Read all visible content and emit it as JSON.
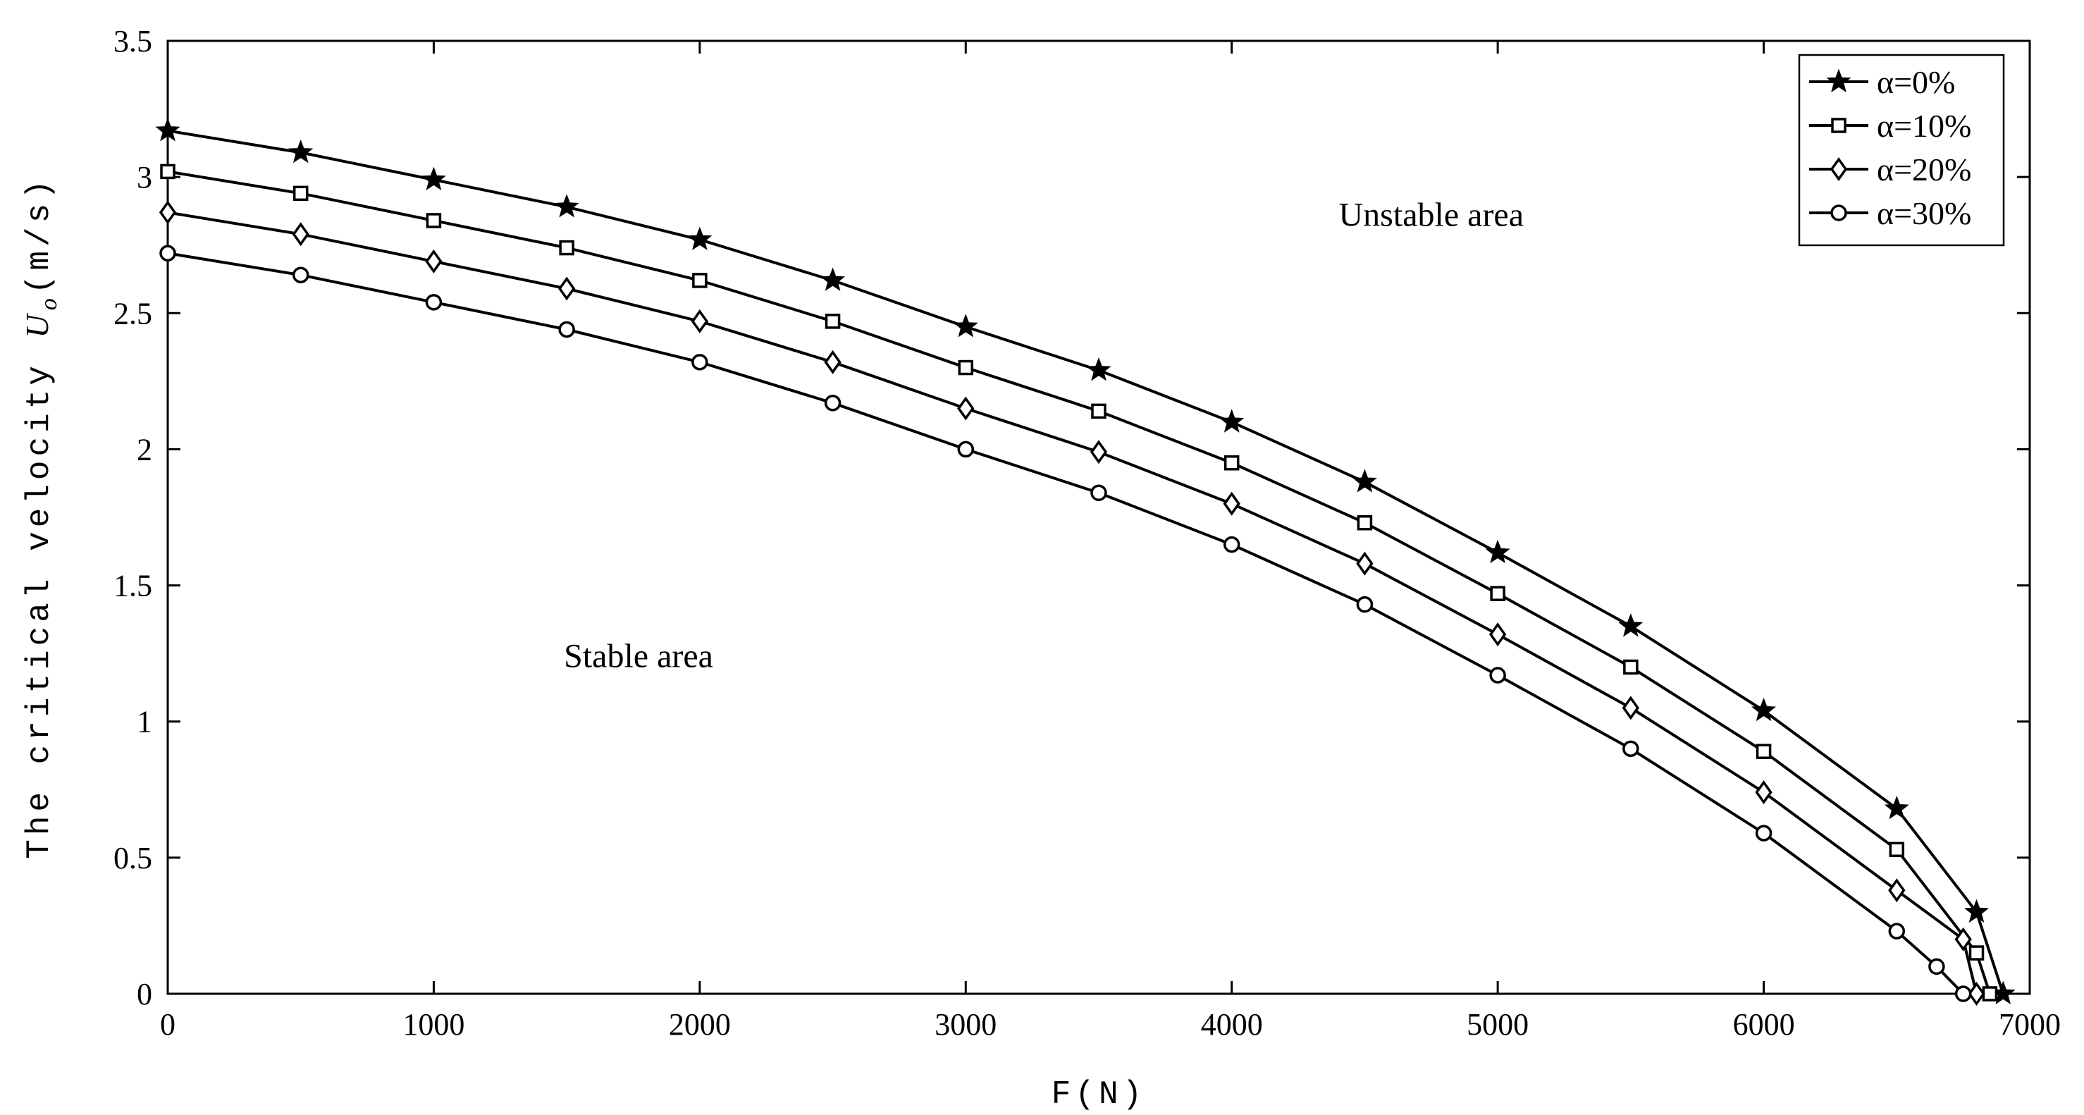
{
  "chart_data": {
    "type": "line",
    "xlabel": "F(N)",
    "ylabel_prefix": "The critical velocity ",
    "ylabel_symbol": "U",
    "ylabel_subscript": "o",
    "ylabel_unit": "(m/s)",
    "xlim": [
      0,
      7000
    ],
    "ylim": [
      0,
      3.5
    ],
    "xticks": [
      0,
      1000,
      2000,
      3000,
      4000,
      5000,
      6000,
      7000
    ],
    "yticks": [
      0,
      0.5,
      1,
      1.5,
      2,
      2.5,
      3,
      3.5
    ],
    "ytick_labels": [
      "0",
      "0.5",
      "1",
      "1.5",
      "2",
      "2.5",
      "3",
      "3.5"
    ],
    "grid": false,
    "legend_position": "top-right",
    "annotations": [
      {
        "text": "Unstable area",
        "x": 4750,
        "y": 2.82
      },
      {
        "text": "Stable area",
        "x": 1770,
        "y": 1.2
      }
    ],
    "series": [
      {
        "name": "α=0%",
        "marker": "star",
        "x": [
          0,
          500,
          1000,
          1500,
          2000,
          2500,
          3000,
          3500,
          4000,
          4500,
          5000,
          5500,
          6000,
          6500,
          6800,
          6900
        ],
        "y": [
          3.17,
          3.09,
          2.99,
          2.89,
          2.77,
          2.62,
          2.45,
          2.29,
          2.1,
          1.88,
          1.62,
          1.35,
          1.04,
          0.68,
          0.3,
          0
        ]
      },
      {
        "name": "α=10%",
        "marker": "square",
        "x": [
          0,
          500,
          1000,
          1500,
          2000,
          2500,
          3000,
          3500,
          4000,
          4500,
          5000,
          5500,
          6000,
          6500,
          6800,
          6850
        ],
        "y": [
          3.02,
          2.94,
          2.84,
          2.74,
          2.62,
          2.47,
          2.3,
          2.14,
          1.95,
          1.73,
          1.47,
          1.2,
          0.89,
          0.53,
          0.15,
          0
        ]
      },
      {
        "name": "α=20%",
        "marker": "diamond",
        "x": [
          0,
          500,
          1000,
          1500,
          2000,
          2500,
          3000,
          3500,
          4000,
          4500,
          5000,
          5500,
          6000,
          6500,
          6750,
          6800
        ],
        "y": [
          2.87,
          2.79,
          2.69,
          2.59,
          2.47,
          2.32,
          2.15,
          1.99,
          1.8,
          1.58,
          1.32,
          1.05,
          0.74,
          0.38,
          0.2,
          0
        ]
      },
      {
        "name": "α=30%",
        "marker": "circle",
        "x": [
          0,
          500,
          1000,
          1500,
          2000,
          2500,
          3000,
          3500,
          4000,
          4500,
          5000,
          5500,
          6000,
          6500,
          6650,
          6750
        ],
        "y": [
          2.72,
          2.64,
          2.54,
          2.44,
          2.32,
          2.17,
          2.0,
          1.84,
          1.65,
          1.43,
          1.17,
          0.9,
          0.59,
          0.23,
          0.1,
          0
        ]
      }
    ]
  }
}
